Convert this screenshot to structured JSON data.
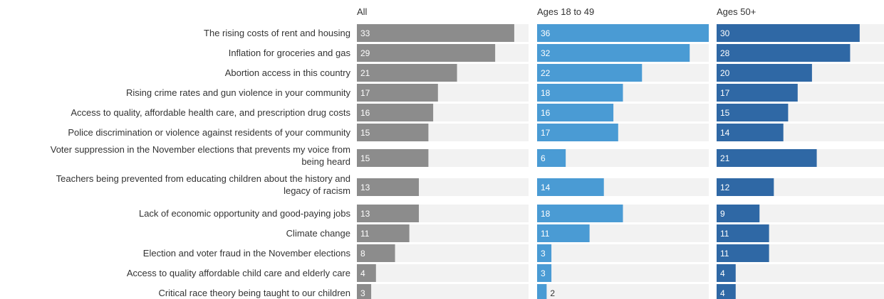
{
  "chart_data": {
    "type": "bar",
    "orientation": "horizontal",
    "categories": [
      "The rising costs of rent and housing",
      "Inflation for groceries and gas",
      "Abortion access in this country",
      "Rising crime rates and gun violence in your community",
      "Access to quality, affordable health care, and prescription drug costs",
      "Police discrimination or violence against residents of your community",
      "Voter suppression in the November elections that prevents my voice from being heard",
      "Teachers being prevented from educating children about the history and legacy of racism",
      "Lack of economic opportunity and good-paying jobs",
      "Climate change",
      "Election and voter fraud in the November elections",
      "Access to quality affordable child care and elderly care",
      "Critical race theory being taught to our children"
    ],
    "category_lines": [
      [
        "The rising costs of rent and housing"
      ],
      [
        "Inflation for groceries and gas"
      ],
      [
        "Abortion access in this country"
      ],
      [
        "Rising crime rates and gun violence in your community"
      ],
      [
        "Access to quality, affordable health care, and prescription drug costs"
      ],
      [
        "Police discrimination or violence against residents of your community"
      ],
      [
        "Voter suppression in the November elections that prevents my voice from",
        "being heard"
      ],
      [
        "Teachers being prevented from educating children about the history and",
        "legacy of racism"
      ],
      [
        "Lack of economic opportunity and good-paying jobs"
      ],
      [
        "Climate change"
      ],
      [
        "Election and voter fraud in the November elections"
      ],
      [
        "Access to quality affordable child care and elderly care"
      ],
      [
        "Critical race theory being taught to our children"
      ]
    ],
    "series": [
      {
        "name": "All",
        "color": "#8c8c8c",
        "values": [
          33,
          29,
          21,
          17,
          16,
          15,
          15,
          13,
          13,
          11,
          8,
          4,
          3
        ]
      },
      {
        "name": "Ages 18 to 49",
        "color": "#4a9bd4",
        "values": [
          36,
          32,
          22,
          18,
          16,
          17,
          6,
          14,
          18,
          11,
          3,
          3,
          2
        ]
      },
      {
        "name": "Ages 50+",
        "color": "#2f68a5",
        "values": [
          30,
          28,
          20,
          17,
          15,
          14,
          21,
          12,
          9,
          11,
          11,
          4,
          4
        ]
      }
    ],
    "xlim": [
      0,
      36
    ],
    "track_color": "#f2f2f2",
    "label_color": "#333333"
  }
}
